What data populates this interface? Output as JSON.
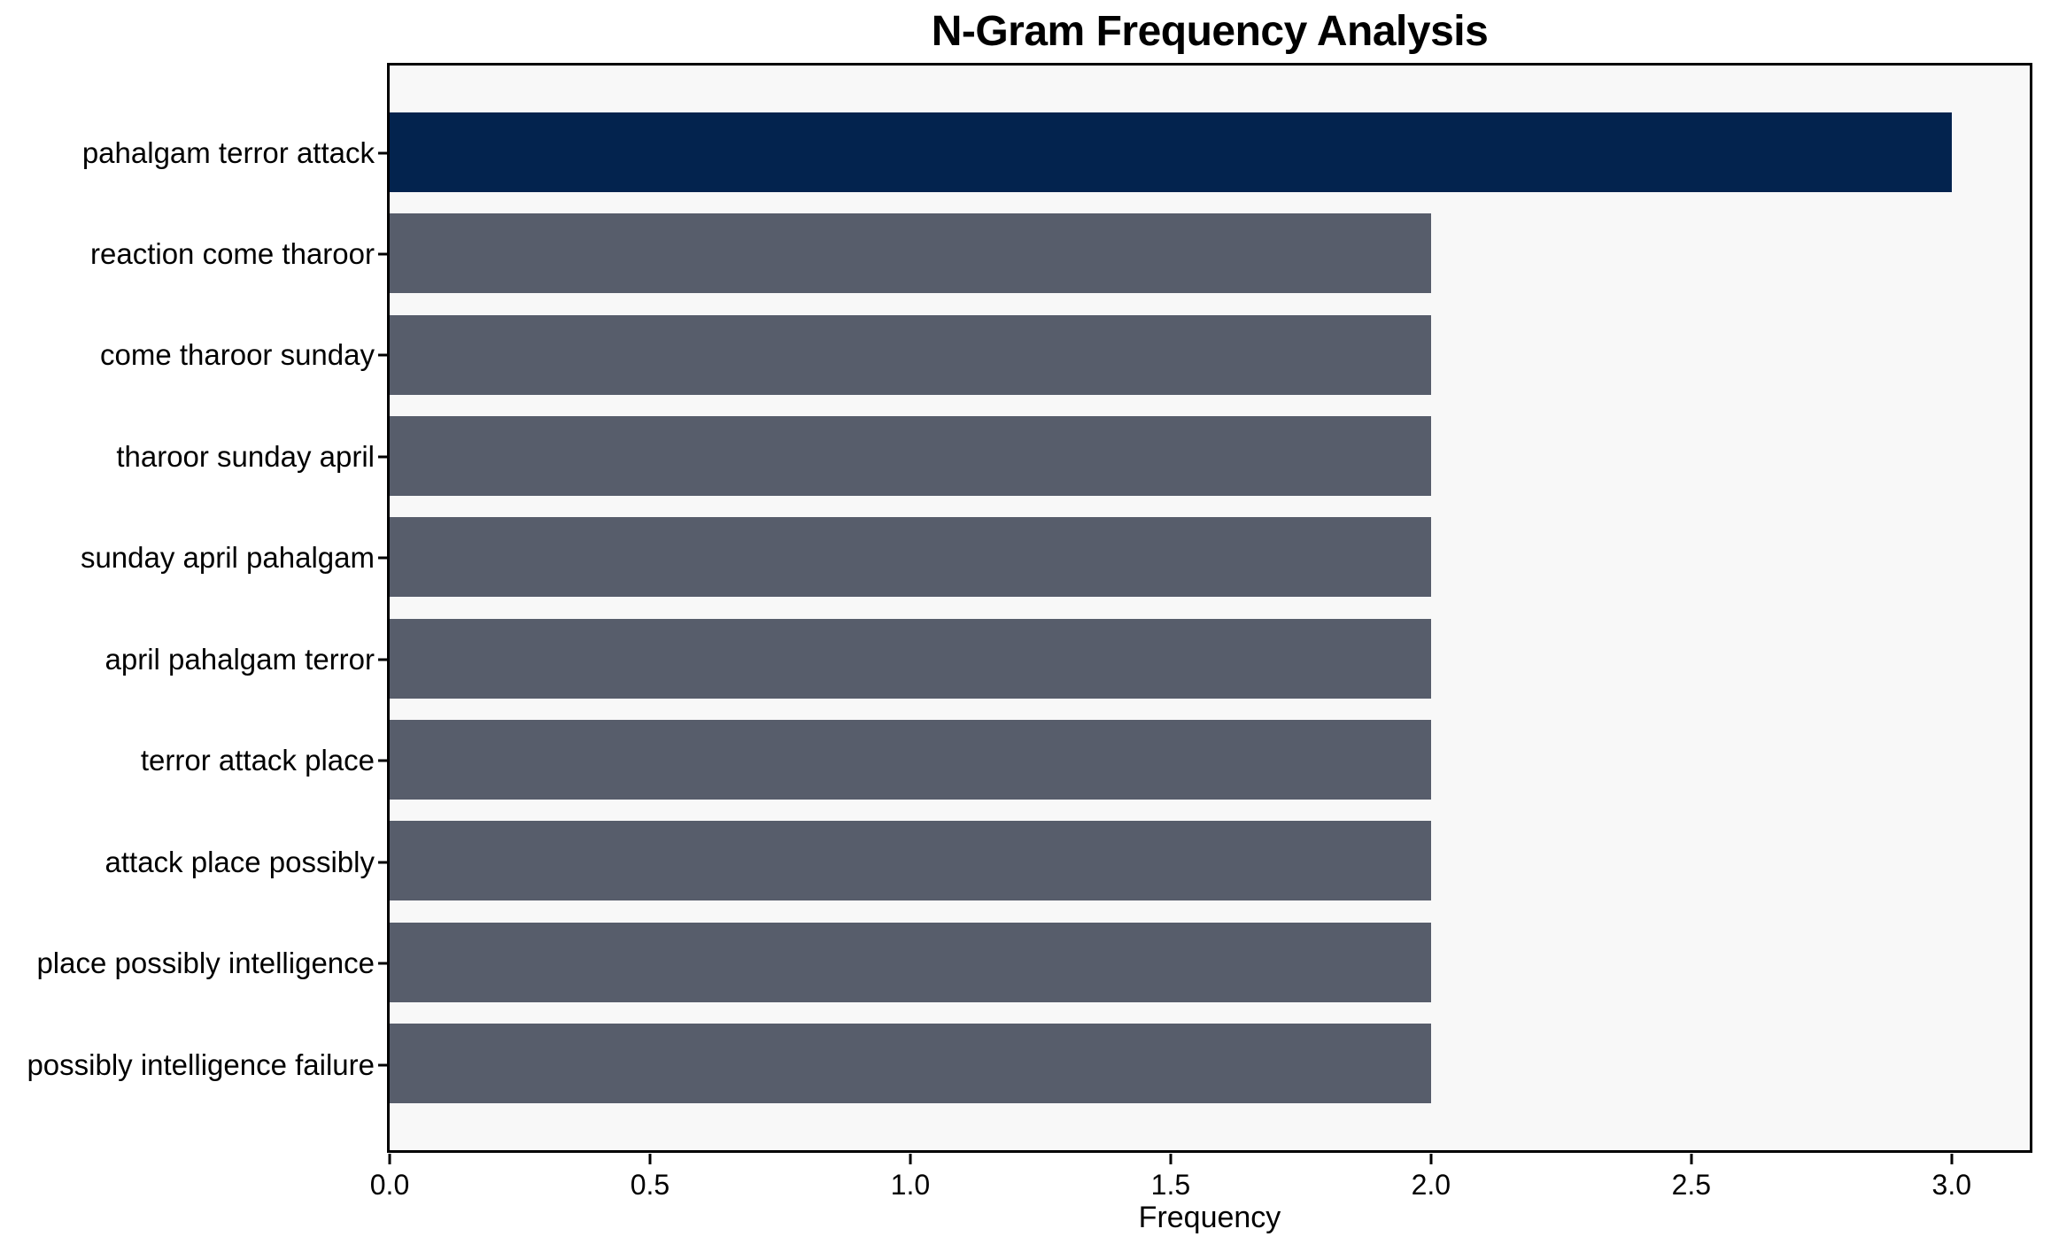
{
  "chart_data": {
    "type": "bar",
    "orientation": "horizontal",
    "title": "N-Gram Frequency Analysis",
    "xlabel": "Frequency",
    "ylabel": "",
    "categories": [
      "pahalgam terror attack",
      "reaction come tharoor",
      "come tharoor sunday",
      "tharoor sunday april",
      "sunday april pahalgam",
      "april pahalgam terror",
      "terror attack place",
      "attack place possibly",
      "place possibly intelligence",
      "possibly intelligence failure"
    ],
    "values": [
      3,
      2,
      2,
      2,
      2,
      2,
      2,
      2,
      2,
      2
    ],
    "bar_colors": [
      "#03234e",
      "#575d6b",
      "#575d6b",
      "#575d6b",
      "#575d6b",
      "#575d6b",
      "#575d6b",
      "#575d6b",
      "#575d6b",
      "#575d6b"
    ],
    "xlim": [
      0,
      3.15
    ],
    "xticks": [
      0,
      0.5,
      1,
      1.5,
      2,
      2.5,
      3
    ],
    "xtick_labels": [
      "0.0",
      "0.5",
      "1.0",
      "1.5",
      "2.0",
      "2.5",
      "3.0"
    ],
    "grid": false,
    "legend": false,
    "colors": {
      "highlight_bar": "#03234e",
      "default_bar": "#575d6b",
      "plot_background": "#f8f8f8",
      "figure_background": "#ffffff",
      "frame": "#000000",
      "text": "#000000"
    }
  }
}
